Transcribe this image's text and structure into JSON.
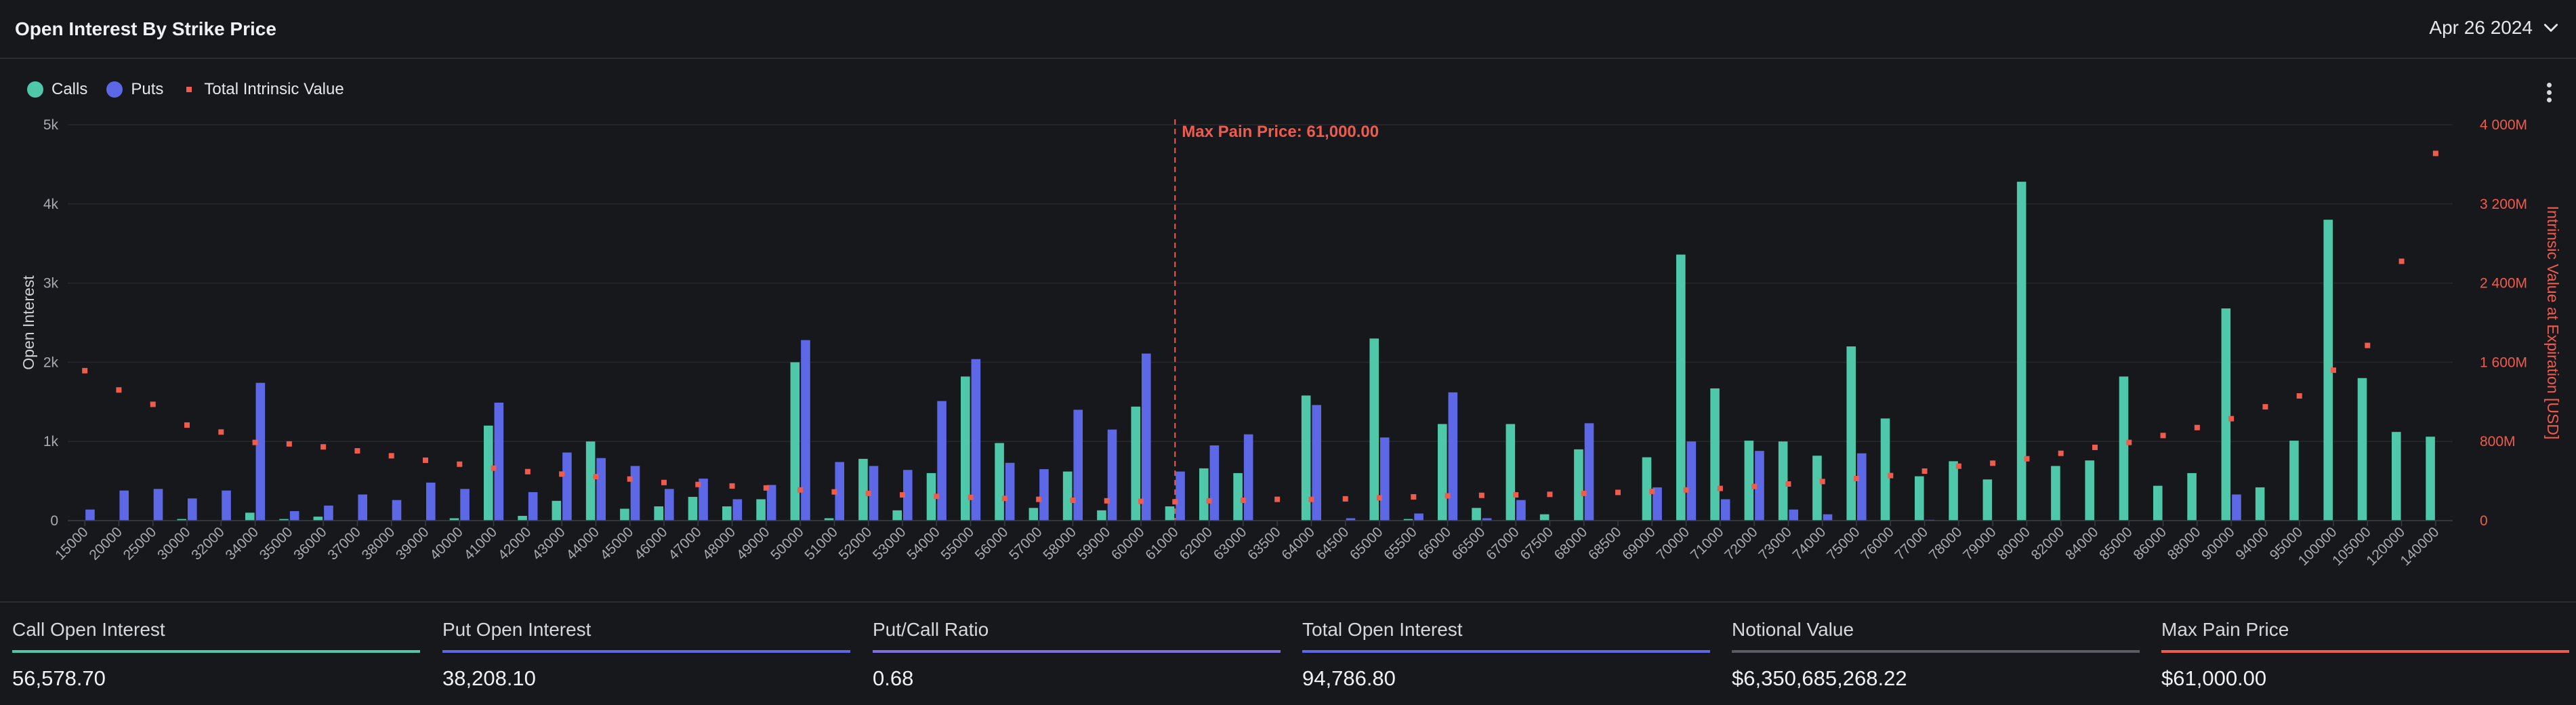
{
  "header": {
    "title": "Open Interest By Strike Price",
    "date": "Apr 26 2024"
  },
  "legend": {
    "calls": "Calls",
    "puts": "Puts",
    "intrinsic": "Total Intrinsic Value"
  },
  "colors": {
    "calls": "#4fc8a9",
    "puts": "#5d68e6",
    "intrinsic": "#ef5b4c",
    "ratio_line": "#7c6fe0",
    "notional_line": "#5a5c63"
  },
  "chart_data": {
    "type": "bar",
    "ylabel": "Open Interest",
    "ylabel_right": "Intrinsic Value at Expiration [USD]",
    "ylim": [
      0,
      5000
    ],
    "ylim_right": [
      0,
      4000000000
    ],
    "y_ticks": [
      "0",
      "1k",
      "2k",
      "3k",
      "4k",
      "5k"
    ],
    "y_ticks_right": [
      "0",
      "800M",
      "1 600M",
      "2 400M",
      "3 200M",
      "4 000M"
    ],
    "annotation": "Max Pain Price: 61,000.00",
    "max_pain_strike": "61000",
    "categories": [
      "15000",
      "20000",
      "25000",
      "30000",
      "32000",
      "34000",
      "35000",
      "36000",
      "37000",
      "38000",
      "39000",
      "40000",
      "41000",
      "42000",
      "43000",
      "44000",
      "45000",
      "46000",
      "47000",
      "48000",
      "49000",
      "50000",
      "51000",
      "52000",
      "53000",
      "54000",
      "55000",
      "56000",
      "57000",
      "58000",
      "59000",
      "60000",
      "61000",
      "62000",
      "63000",
      "63500",
      "64000",
      "64500",
      "65000",
      "65500",
      "66000",
      "66500",
      "67000",
      "67500",
      "68000",
      "68500",
      "69000",
      "70000",
      "71000",
      "72000",
      "73000",
      "74000",
      "75000",
      "76000",
      "77000",
      "78000",
      "79000",
      "80000",
      "82000",
      "84000",
      "85000",
      "86000",
      "88000",
      "90000",
      "94000",
      "95000",
      "100000",
      "105000",
      "120000",
      "140000"
    ],
    "series": [
      {
        "name": "Calls",
        "values": [
          0,
          0,
          0,
          20,
          0,
          100,
          20,
          50,
          0,
          0,
          0,
          30,
          1200,
          60,
          250,
          1000,
          150,
          180,
          300,
          180,
          270,
          2000,
          30,
          780,
          130,
          600,
          1820,
          980,
          160,
          620,
          130,
          1440,
          180,
          660,
          600,
          0,
          1580,
          0,
          2300,
          20,
          1220,
          160,
          1220,
          80,
          900,
          0,
          800,
          3360,
          1670,
          1010,
          1000,
          820,
          2200,
          1290,
          560,
          750,
          520,
          4280,
          690,
          760,
          1820,
          440,
          600,
          2680,
          420,
          1010,
          3800,
          1800,
          1120,
          1060
        ]
      },
      {
        "name": "Puts",
        "values": [
          140,
          380,
          400,
          280,
          380,
          1740,
          120,
          190,
          330,
          260,
          480,
          400,
          1490,
          360,
          860,
          790,
          690,
          400,
          530,
          270,
          450,
          2280,
          740,
          690,
          640,
          1510,
          2040,
          730,
          650,
          1400,
          1150,
          2110,
          620,
          950,
          1090,
          0,
          1460,
          30,
          1050,
          90,
          1620,
          30,
          260,
          0,
          1230,
          0,
          420,
          1000,
          270,
          880,
          140,
          80,
          850,
          0,
          10,
          0,
          0,
          0,
          0,
          0,
          0,
          0,
          0,
          330,
          0,
          0,
          0,
          0,
          0,
          0
        ]
      },
      {
        "name": "Total Intrinsic Value",
        "values": [
          1515000000,
          1320000000,
          1175000000,
          965000000,
          895000000,
          790000000,
          775000000,
          745000000,
          705000000,
          655000000,
          610000000,
          570000000,
          530000000,
          495000000,
          470000000,
          445000000,
          420000000,
          385000000,
          365000000,
          350000000,
          330000000,
          310000000,
          290000000,
          275000000,
          260000000,
          245000000,
          235000000,
          225000000,
          215000000,
          205000000,
          200000000,
          195000000,
          190000000,
          200000000,
          205000000,
          215000000,
          215000000,
          220000000,
          230000000,
          240000000,
          250000000,
          255000000,
          260000000,
          265000000,
          275000000,
          285000000,
          295000000,
          310000000,
          325000000,
          345000000,
          370000000,
          395000000,
          425000000,
          455000000,
          500000000,
          550000000,
          580000000,
          625000000,
          680000000,
          740000000,
          790000000,
          860000000,
          940000000,
          1030000000,
          1150000000,
          1260000000,
          1520000000,
          1770000000,
          2620000000,
          3710000000
        ]
      }
    ]
  },
  "stats": [
    {
      "label": "Call Open Interest",
      "value": "56,578.70",
      "color": "#4fc8a9"
    },
    {
      "label": "Put Open Interest",
      "value": "38,208.10",
      "color": "#5d68e6"
    },
    {
      "label": "Put/Call Ratio",
      "value": "0.68",
      "color": "#7c6fe0"
    },
    {
      "label": "Total Open Interest",
      "value": "94,786.80",
      "color": "#5d68e6"
    },
    {
      "label": "Notional Value",
      "value": "$6,350,685,268.22",
      "color": "#5a5c63"
    },
    {
      "label": "Max Pain Price",
      "value": "$61,000.00",
      "color": "#ef5b4c"
    }
  ]
}
